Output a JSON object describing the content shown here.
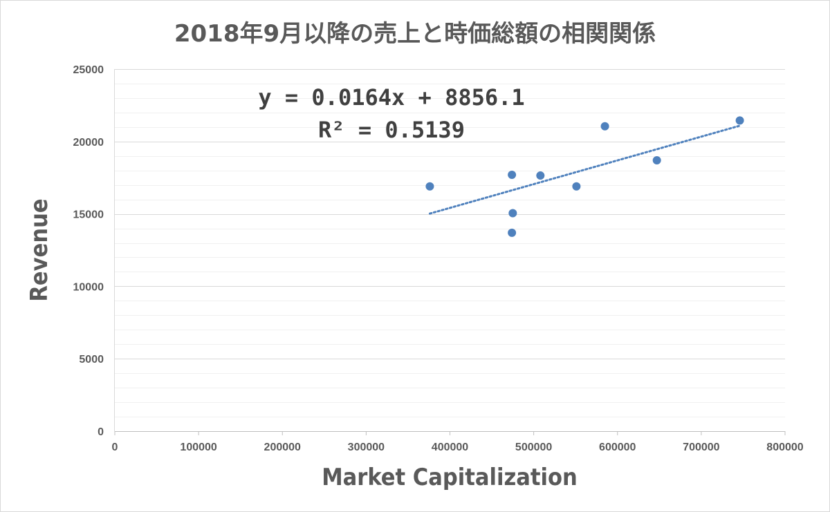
{
  "chart_data": {
    "type": "scatter",
    "title": "2018年9月以降の売上と時価総額の相関関係",
    "xlabel": "Market Capitalization",
    "ylabel": "Revenue",
    "xlim": [
      0,
      800000
    ],
    "ylim": [
      0,
      25000
    ],
    "x_ticks": [
      "0",
      "100000",
      "200000",
      "300000",
      "400000",
      "500000",
      "600000",
      "700000",
      "800000"
    ],
    "y_ticks": [
      "0",
      "5000",
      "10000",
      "15000",
      "20000",
      "25000"
    ],
    "grid": "horizontal major and minor",
    "legend": "none",
    "point_color": "#4f81bd",
    "trendline_color": "#4f81bd",
    "series": [
      {
        "points": [
          [
            376000,
            16900
          ],
          [
            474000,
            17700
          ],
          [
            475000,
            15050
          ],
          [
            474000,
            13700
          ],
          [
            508000,
            17650
          ],
          [
            551000,
            16900
          ],
          [
            585000,
            21050
          ],
          [
            647000,
            18700
          ],
          [
            746000,
            21450
          ]
        ]
      }
    ],
    "trendline": {
      "type": "linear",
      "slope": 0.0164,
      "intercept": 8856.1,
      "x_range": [
        376000,
        746000
      ],
      "equation": "y = 0.0164x + 8856.1",
      "r2": "R² = 0.5139"
    }
  }
}
